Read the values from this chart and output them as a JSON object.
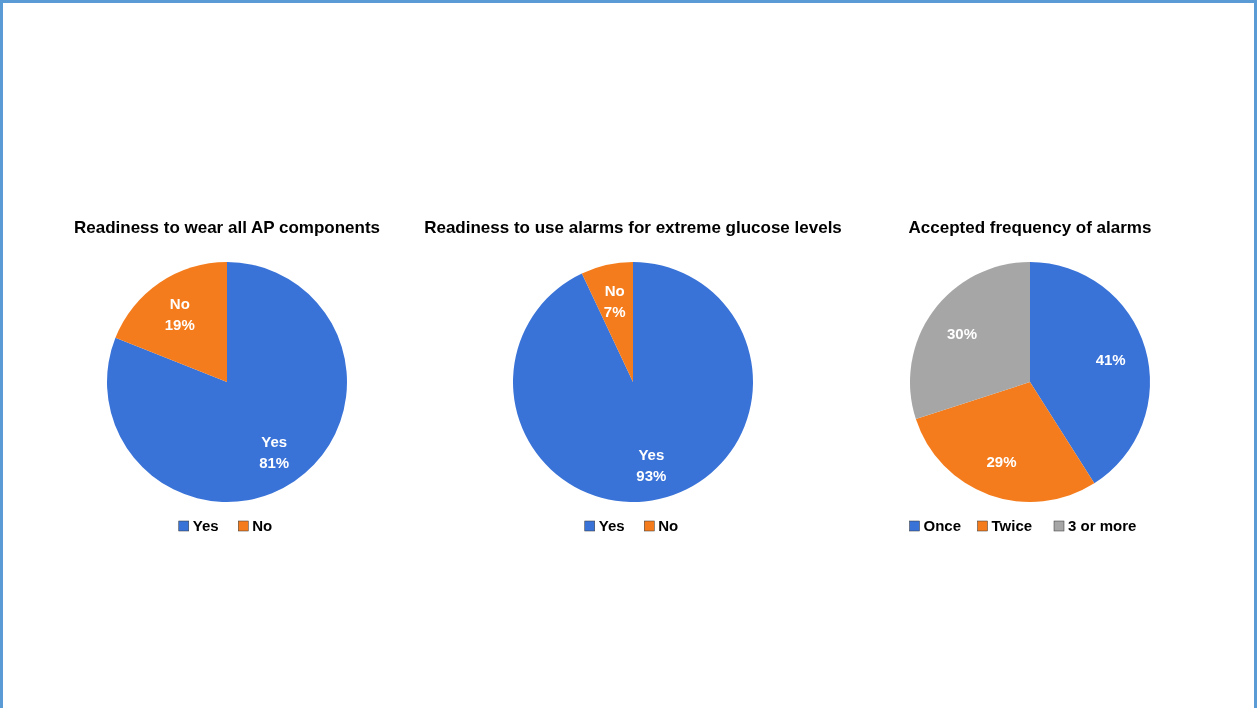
{
  "chart_data": [
    {
      "type": "pie",
      "title": "Readiness to wear all AP components",
      "categories": [
        "Yes",
        "No"
      ],
      "values": [
        81,
        19
      ],
      "colors": [
        "#3a73d8",
        "#f47c1c"
      ],
      "value_labels": [
        "Yes 81%",
        "No 19%"
      ],
      "legend": "bottom"
    },
    {
      "type": "pie",
      "title": "Readiness to use alarms for extreme glucose levels",
      "categories": [
        "Yes",
        "No"
      ],
      "values": [
        93,
        7
      ],
      "colors": [
        "#3a73d8",
        "#f47c1c"
      ],
      "value_labels": [
        "Yes 93%",
        "No 7%"
      ],
      "legend": "bottom"
    },
    {
      "type": "pie",
      "title": "Accepted frequency of alarms",
      "categories": [
        "Once",
        "Twice",
        "3 or more"
      ],
      "values": [
        41,
        29,
        30
      ],
      "colors": [
        "#3a73d8",
        "#f47c1c",
        "#a6a6a6"
      ],
      "value_labels": [
        "41%",
        "29%",
        "30%"
      ],
      "legend": "bottom"
    }
  ]
}
